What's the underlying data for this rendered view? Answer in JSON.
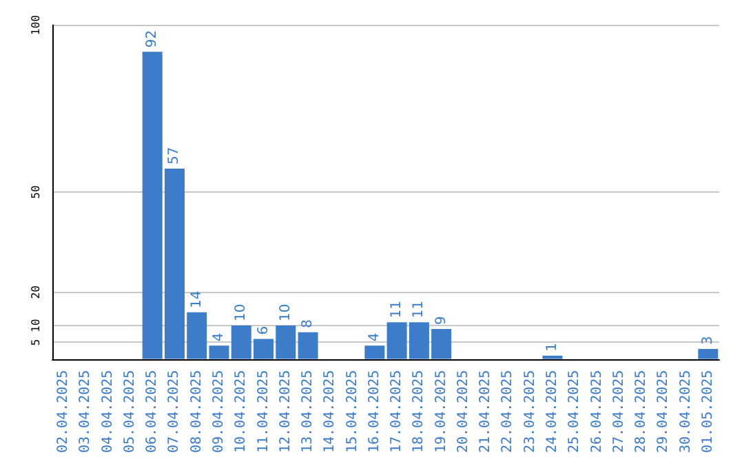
{
  "chart_data": {
    "type": "bar",
    "categories": [
      "02.04.2025",
      "03.04.2025",
      "04.04.2025",
      "05.04.2025",
      "06.04.2025",
      "07.04.2025",
      "08.04.2025",
      "09.04.2025",
      "10.04.2025",
      "11.04.2025",
      "12.04.2025",
      "13.04.2025",
      "14.04.2025",
      "15.04.2025",
      "16.04.2025",
      "17.04.2025",
      "18.04.2025",
      "19.04.2025",
      "20.04.2025",
      "21.04.2025",
      "22.04.2025",
      "23.04.2025",
      "24.04.2025",
      "25.04.2025",
      "26.04.2025",
      "27.04.2025",
      "28.04.2025",
      "29.04.2025",
      "30.04.2025",
      "01.05.2025"
    ],
    "values": [
      null,
      null,
      null,
      null,
      92,
      57,
      14,
      4,
      10,
      6,
      10,
      8,
      null,
      null,
      4,
      11,
      11,
      9,
      null,
      null,
      null,
      null,
      1,
      null,
      null,
      null,
      null,
      null,
      null,
      3
    ],
    "color": "#3d7cc9",
    "ylim": [
      0,
      100
    ],
    "yticks": [
      5,
      10,
      20,
      50,
      100
    ],
    "grid": "y",
    "data_labels": true
  }
}
